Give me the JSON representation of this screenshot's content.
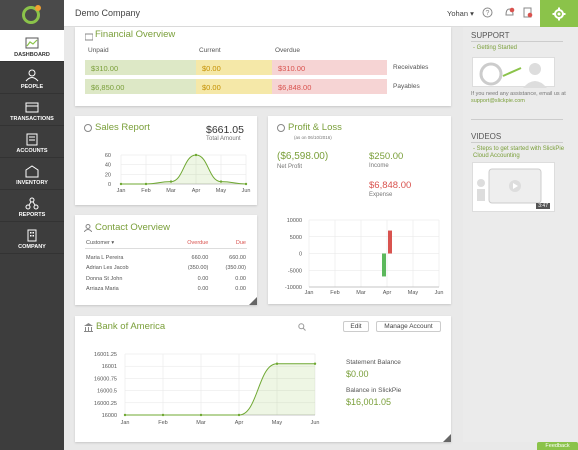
{
  "app": {
    "company": "Demo Company",
    "user": "Yohan ▾"
  },
  "nav": [
    {
      "label": "DASHBOARD"
    },
    {
      "label": "PEOPLE"
    },
    {
      "label": "TRANSACTIONS"
    },
    {
      "label": "ACCOUNTS"
    },
    {
      "label": "INVENTORY"
    },
    {
      "label": "REPORTS"
    },
    {
      "label": "COMPANY"
    }
  ],
  "financial": {
    "title": "Financial Overview",
    "headers": [
      "Unpaid",
      "Current",
      "Overdue"
    ],
    "rows": [
      {
        "unpaid": "$310.00",
        "current": "$0.00",
        "overdue": "$310.00",
        "label": "Receivables"
      },
      {
        "unpaid": "$6,850.00",
        "current": "$0.00",
        "overdue": "$6,848.00",
        "label": "Payables"
      }
    ]
  },
  "sales": {
    "title": "Sales Report",
    "total": "$661.05",
    "total_label": "Total Amount"
  },
  "profit": {
    "title": "Profit & Loss",
    "asof": "(as on 06/10/2016)",
    "net": "($6,598.00)",
    "net_label": "Net Profit",
    "income": "$250.00",
    "income_label": "Income",
    "expense": "$6,848.00",
    "expense_label": "Expense"
  },
  "contact": {
    "title": "Contact Overview",
    "headers": [
      "Customer ▾",
      "Overdue",
      "Due"
    ],
    "rows": [
      [
        "Maria L Pereira",
        "660.00",
        "660.00"
      ],
      [
        "Adrian Les Jacob",
        "(350.00)",
        "(350.00)"
      ],
      [
        "Donna St John",
        "0.00",
        "0.00"
      ],
      [
        "Arriaza Maria",
        "0.00",
        "0.00"
      ]
    ]
  },
  "bank": {
    "title": "Bank of America",
    "edit_label": "Edit",
    "manage_label": "Manage Account",
    "stmt_label": "Statement Balance",
    "stmt_value": "$0.00",
    "sp_label": "Balance in SlickPie",
    "sp_value": "$16,001.05"
  },
  "support": {
    "title": "SUPPORT",
    "link": "- Getting Started",
    "text": "If you need any assistance, email us at",
    "email": "support@slickpie.com"
  },
  "videos": {
    "title": "VIDEOS",
    "link": "- Steps to get started with SlickPie Cloud Accounting",
    "duration": "3:47"
  },
  "feedback": "Feedback",
  "colors": {
    "accent": "#8bc34a",
    "green_text": "#7a9f3a",
    "red": "#d9534f",
    "sidebar": "#3d3d3d"
  },
  "chart_data": [
    {
      "type": "line",
      "title": "Sales Report",
      "categories": [
        "Jan",
        "Feb",
        "Mar",
        "Apr",
        "May",
        "Jun"
      ],
      "values": [
        0,
        0,
        5,
        60,
        5,
        0
      ],
      "ylim": [
        0,
        60
      ],
      "yticks": [
        "60",
        "40",
        "20",
        "0"
      ]
    },
    {
      "type": "bar",
      "title": "Profit & Loss",
      "categories": [
        "Jan",
        "Feb",
        "Mar",
        "Apr",
        "May",
        "Jun"
      ],
      "series": [
        {
          "values": [
            0,
            0,
            0,
            6848,
            0,
            0
          ]
        },
        {
          "values": [
            0,
            0,
            0,
            -6848,
            0,
            0
          ]
        }
      ],
      "ylim": [
        -10000,
        10000
      ],
      "yticks": [
        "10000",
        "5000",
        "0",
        "-5000",
        "-10000"
      ]
    },
    {
      "type": "area",
      "title": "Bank of America",
      "categories": [
        "Jan",
        "Feb",
        "Mar",
        "Apr",
        "May",
        "Jun"
      ],
      "values": [
        16000,
        16000,
        16000,
        16000,
        16001.05,
        16001.05
      ],
      "ylim": [
        16000,
        16001.25
      ],
      "yticks": [
        "16001.25",
        "16001",
        "16000.75",
        "16000.5",
        "16000.25",
        "16000"
      ]
    }
  ]
}
